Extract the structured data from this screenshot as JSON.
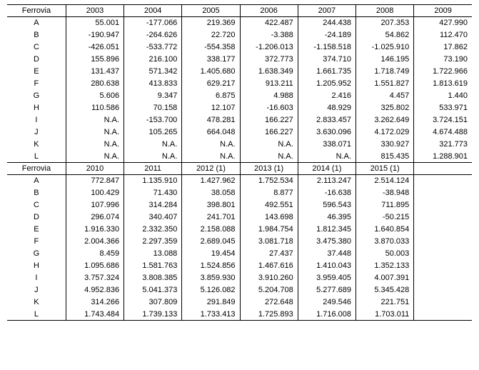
{
  "table1": {
    "headerLabel": "Ferrovia",
    "years": [
      "2003",
      "2004",
      "2005",
      "2006",
      "2007",
      "2008",
      "2009"
    ],
    "rows": [
      {
        "label": "A",
        "vals": [
          "55.001",
          "-177.066",
          "219.369",
          "422.487",
          "244.438",
          "207.353",
          "427.990"
        ]
      },
      {
        "label": "B",
        "vals": [
          "-190.947",
          "-264.626",
          "22.720",
          "-3.388",
          "-24.189",
          "54.862",
          "112.470"
        ]
      },
      {
        "label": "C",
        "vals": [
          "-426.051",
          "-533.772",
          "-554.358",
          "-1.206.013",
          "-1.158.518",
          "-1.025.910",
          "17.862"
        ]
      },
      {
        "label": "D",
        "vals": [
          "155.896",
          "216.100",
          "338.177",
          "372.773",
          "374.710",
          "146.195",
          "73.190"
        ]
      },
      {
        "label": "E",
        "vals": [
          "131.437",
          "571.342",
          "1.405.680",
          "1.638.349",
          "1.661.735",
          "1.718.749",
          "1.722.966"
        ]
      },
      {
        "label": "F",
        "vals": [
          "280.638",
          "413.833",
          "629.217",
          "913.211",
          "1.205.952",
          "1.551.827",
          "1.813.619"
        ]
      },
      {
        "label": "G",
        "vals": [
          "5.606",
          "9.347",
          "6.875",
          "4.988",
          "2.416",
          "4.457",
          "1.440"
        ]
      },
      {
        "label": "H",
        "vals": [
          "110.586",
          "70.158",
          "12.107",
          "-16.603",
          "48.929",
          "325.802",
          "533.971"
        ]
      },
      {
        "label": "I",
        "vals": [
          "N.A.",
          "-153.700",
          "478.281",
          "166.227",
          "2.833.457",
          "3.262.649",
          "3.724.151"
        ]
      },
      {
        "label": "J",
        "vals": [
          "N.A.",
          "105.265",
          "664.048",
          "166.227",
          "3.630.096",
          "4.172.029",
          "4.674.488"
        ]
      },
      {
        "label": "K",
        "vals": [
          "N.A.",
          "N.A.",
          "N.A.",
          "N.A.",
          "338.071",
          "330.927",
          "321.773"
        ]
      },
      {
        "label": "L",
        "vals": [
          "N.A.",
          "N.A.",
          "N.A.",
          "N.A.",
          "N.A.",
          "815.435",
          "1.288.901"
        ]
      }
    ]
  },
  "table2": {
    "headerLabel": "Ferrovia",
    "years": [
      "2010",
      "2011",
      "2012 (1)",
      "2013 (1)",
      "2014 (1)",
      "2015 (1)"
    ],
    "rows": [
      {
        "label": "A",
        "vals": [
          "772.847",
          "1.135.910",
          "1.427.962",
          "1.752.534",
          "2.113.247",
          "2.514.124"
        ]
      },
      {
        "label": "B",
        "vals": [
          "100.429",
          "71.430",
          "38.058",
          "8.877",
          "-16.638",
          "-38.948"
        ]
      },
      {
        "label": "C",
        "vals": [
          "107.996",
          "314.284",
          "398.801",
          "492.551",
          "596.543",
          "711.895"
        ]
      },
      {
        "label": "D",
        "vals": [
          "296.074",
          "340.407",
          "241.701",
          "143.698",
          "46.395",
          "-50.215"
        ]
      },
      {
        "label": "E",
        "vals": [
          "1.916.330",
          "2.332.350",
          "2.158.088",
          "1.984.754",
          "1.812.345",
          "1.640.854"
        ]
      },
      {
        "label": "F",
        "vals": [
          "2.004.366",
          "2.297.359",
          "2.689.045",
          "3.081.718",
          "3.475.380",
          "3.870.033"
        ]
      },
      {
        "label": "G",
        "vals": [
          "8.459",
          "13.088",
          "19.454",
          "27.437",
          "37.448",
          "50.003"
        ]
      },
      {
        "label": "H",
        "vals": [
          "1.095.686",
          "1.581.763",
          "1.524.856",
          "1.467.616",
          "1.410.043",
          "1.352.133"
        ]
      },
      {
        "label": "I",
        "vals": [
          "3.757.324",
          "3.808.385",
          "3.859.930",
          "3.910.260",
          "3.959.405",
          "4.007.391"
        ]
      },
      {
        "label": "J",
        "vals": [
          "4.952.836",
          "5.041.373",
          "5.126.082",
          "5.204.708",
          "5.277.689",
          "5.345.428"
        ]
      },
      {
        "label": "K",
        "vals": [
          "314.266",
          "307.809",
          "291.849",
          "272.648",
          "249.546",
          "221.751"
        ]
      },
      {
        "label": "L",
        "vals": [
          "1.743.484",
          "1.739.133",
          "1.733.413",
          "1.725.893",
          "1.716.008",
          "1.703.011"
        ]
      }
    ]
  }
}
